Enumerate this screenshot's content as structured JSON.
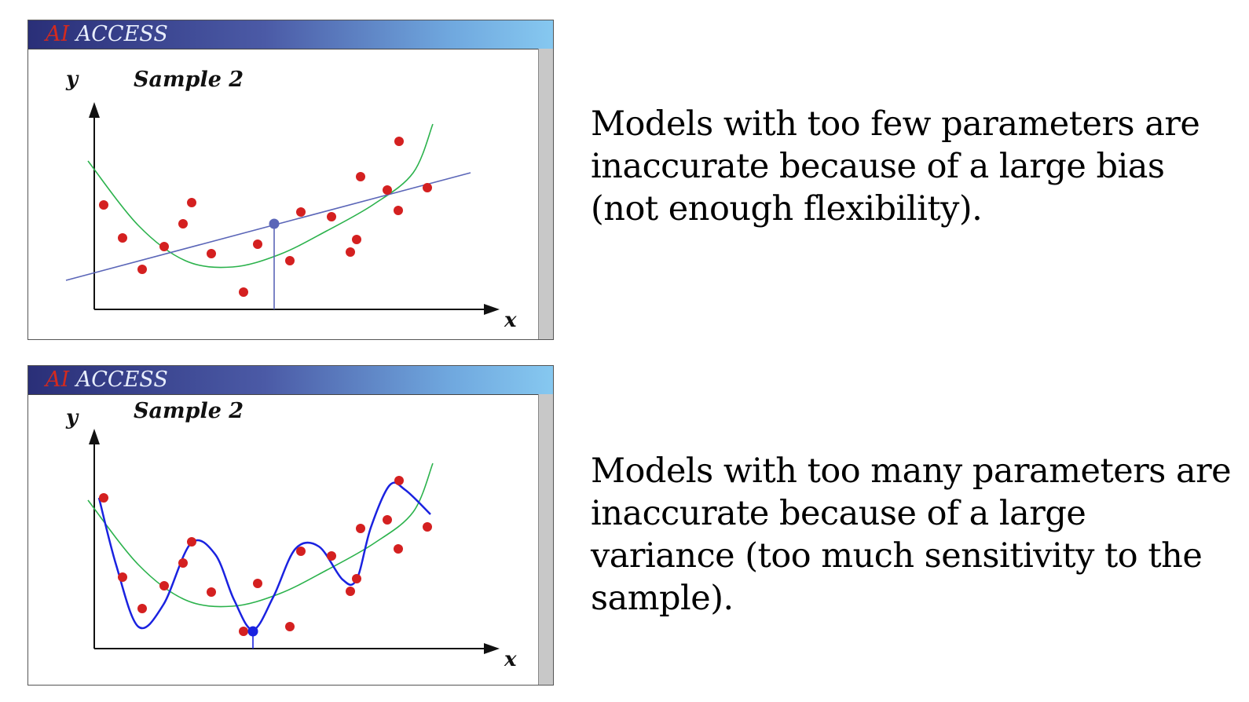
{
  "panels": [
    {
      "brand_ai": "AI",
      "brand_access": "ACCESS",
      "sample_label": "Sample 2",
      "y_label": "y",
      "x_label": "x",
      "fit": "linear",
      "description": "Models with too few parameters are inaccurate because of a large bias (not enough flexibility)."
    },
    {
      "brand_ai": "AI",
      "brand_access": "ACCESS",
      "sample_label": "Sample 2",
      "y_label": "y",
      "x_label": "x",
      "fit": "wiggly",
      "description": "Models with too many parameters are inaccurate because of a large variance (too much sensitivity to the sample)."
    }
  ],
  "colors": {
    "points": "#d42020",
    "true_curve": "#2bb24c",
    "linear_fit": "#5b66b8",
    "wiggly_fit": "#1a22e0",
    "axes": "#111111"
  }
}
